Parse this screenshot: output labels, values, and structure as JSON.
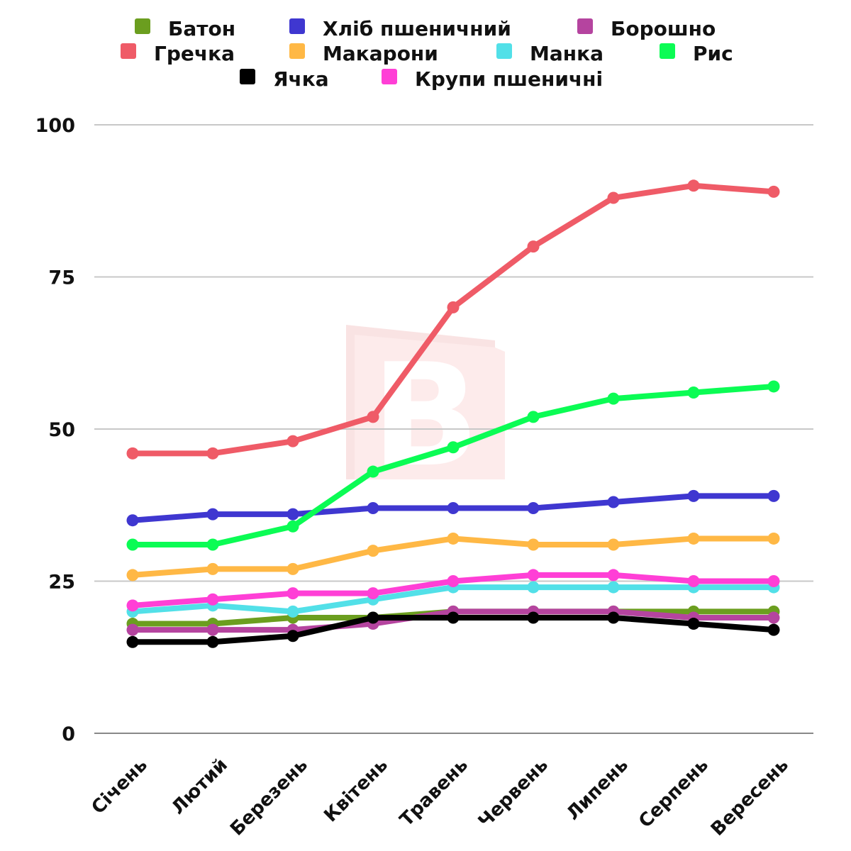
{
  "chart_data": {
    "type": "line",
    "title": "",
    "xlabel": "",
    "ylabel": "",
    "ylim": [
      0,
      100
    ],
    "yticks": [
      0,
      25,
      50,
      75,
      100
    ],
    "grid": true,
    "legend_position": "top",
    "categories": [
      "Січень",
      "Лютий",
      "Березень",
      "Квітень",
      "Травень",
      "Червень",
      "Липень",
      "Серпень",
      "Вересень"
    ],
    "series": [
      {
        "name": "Батон",
        "color": "#6b9e1f",
        "values": [
          18,
          18,
          19,
          19,
          20,
          20,
          20,
          20,
          20
        ]
      },
      {
        "name": "Хліб пшеничний",
        "color": "#3f37d0",
        "values": [
          35,
          36,
          36,
          37,
          37,
          37,
          38,
          39,
          39
        ]
      },
      {
        "name": "Борошно",
        "color": "#b5449f",
        "values": [
          17,
          17,
          17,
          18,
          20,
          20,
          20,
          19,
          19
        ]
      },
      {
        "name": "Гречка",
        "color": "#ef5b67",
        "values": [
          46,
          46,
          48,
          52,
          70,
          80,
          88,
          90,
          89
        ]
      },
      {
        "name": "Макарони",
        "color": "#ffb845",
        "values": [
          26,
          27,
          27,
          30,
          32,
          31,
          31,
          32,
          32
        ]
      },
      {
        "name": "Манка",
        "color": "#52e0e8",
        "values": [
          20,
          21,
          20,
          22,
          24,
          24,
          24,
          24,
          24
        ]
      },
      {
        "name": "Рис",
        "color": "#0bfc54",
        "values": [
          31,
          31,
          34,
          43,
          47,
          52,
          55,
          56,
          57
        ]
      },
      {
        "name": "Ячка",
        "color": "#000000",
        "values": [
          15,
          15,
          16,
          19,
          19,
          19,
          19,
          18,
          17
        ]
      },
      {
        "name": "Крупи пшеничні",
        "color": "#ff3fd6",
        "values": [
          21,
          22,
          23,
          23,
          25,
          26,
          26,
          25,
          25
        ]
      }
    ]
  }
}
